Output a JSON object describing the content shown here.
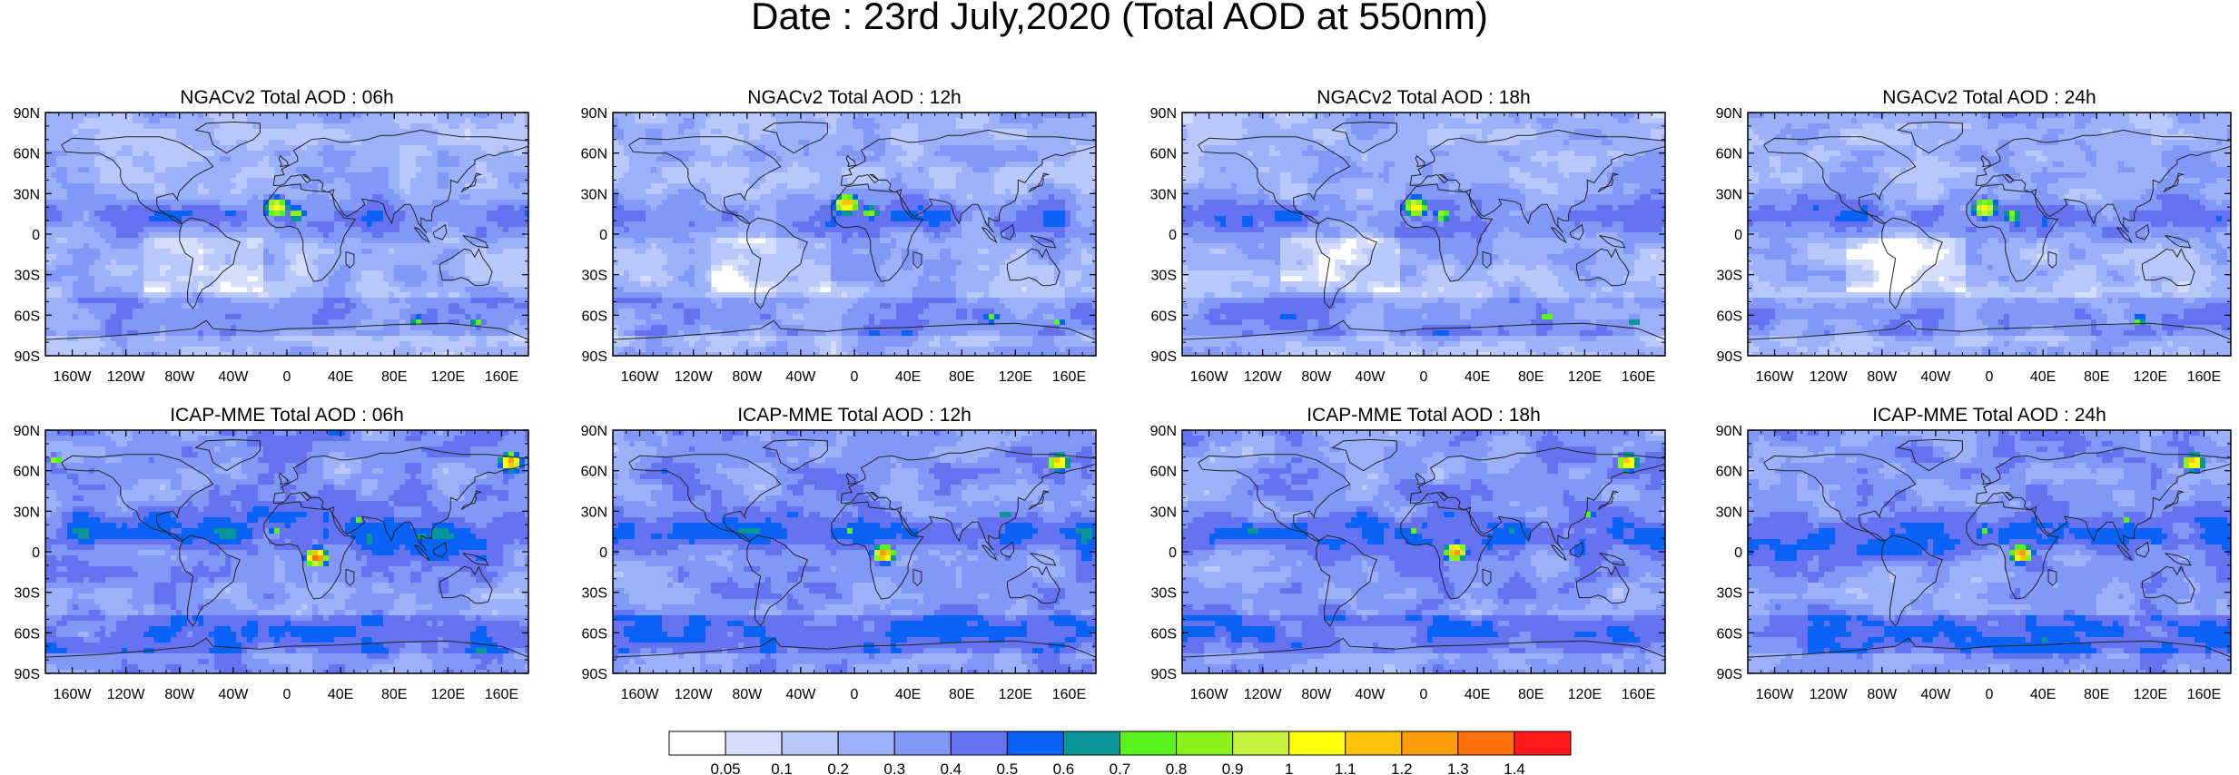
{
  "title": "Date : 23rd July,2020 (Total AOD at 550nm)",
  "lat_labels": [
    "90N",
    "60N",
    "30N",
    "0",
    "30S",
    "60S",
    "90S"
  ],
  "lon_labels": [
    "160W",
    "120W",
    "80W",
    "40W",
    "0",
    "40E",
    "80E",
    "120E",
    "160E"
  ],
  "rows": [
    {
      "panels": [
        {
          "title": "NGACv2 Total AOD : 06h",
          "hotspots": [
            {
              "lon": -10,
              "lat": 22,
              "r": 7,
              "v": 1.1
            },
            {
              "lon": 5,
              "lat": 17,
              "r": 5,
              "v": 0.9
            },
            {
              "lon": 95,
              "lat": -62,
              "r": 4,
              "v": 0.8
            },
            {
              "lon": 140,
              "lat": -63,
              "r": 4,
              "v": 0.8
            }
          ]
        },
        {
          "title": "NGACv2 Total AOD : 12h",
          "hotspots": [
            {
              "lon": -8,
              "lat": 24,
              "r": 7,
              "v": 1.2
            },
            {
              "lon": 10,
              "lat": 18,
              "r": 5,
              "v": 0.9
            },
            {
              "lon": 100,
              "lat": -60,
              "r": 4,
              "v": 0.8
            },
            {
              "lon": 150,
              "lat": -63,
              "r": 3,
              "v": 0.8
            }
          ]
        },
        {
          "title": "NGACv2 Total AOD : 18h",
          "hotspots": [
            {
              "lon": -8,
              "lat": 22,
              "r": 7,
              "v": 1.1
            },
            {
              "lon": 12,
              "lat": 16,
              "r": 5,
              "v": 0.9
            },
            {
              "lon": 90,
              "lat": -60,
              "r": 4,
              "v": 0.8
            },
            {
              "lon": 155,
              "lat": -62,
              "r": 3,
              "v": 0.8
            }
          ]
        },
        {
          "title": "NGACv2 Total AOD : 24h",
          "hotspots": [
            {
              "lon": -5,
              "lat": 21,
              "r": 7,
              "v": 1.1
            },
            {
              "lon": 15,
              "lat": 16,
              "r": 5,
              "v": 0.9
            },
            {
              "lon": 110,
              "lat": -62,
              "r": 4,
              "v": 0.8
            }
          ]
        }
      ]
    },
    {
      "panels": [
        {
          "title": "ICAP-MME Total AOD : 06h",
          "hotspots": [
            {
              "lon": 20,
              "lat": -2,
              "r": 6,
              "v": 1.4
            },
            {
              "lon": -10,
              "lat": 18,
              "r": 4,
              "v": 0.8
            },
            {
              "lon": 50,
              "lat": 25,
              "r": 3,
              "v": 0.8
            },
            {
              "lon": 165,
              "lat": 68,
              "r": 6,
              "v": 1.3
            },
            {
              "lon": -175,
              "lat": 70,
              "r": 4,
              "v": 0.9
            }
          ]
        },
        {
          "title": "ICAP-MME Total AOD : 12h",
          "hotspots": [
            {
              "lon": 20,
              "lat": 0,
              "r": 6,
              "v": 1.3
            },
            {
              "lon": -5,
              "lat": 18,
              "r": 4,
              "v": 0.8
            },
            {
              "lon": 110,
              "lat": 30,
              "r": 3,
              "v": 0.8
            },
            {
              "lon": 150,
              "lat": 68,
              "r": 6,
              "v": 1.2
            }
          ]
        },
        {
          "title": "ICAP-MME Total AOD : 18h",
          "hotspots": [
            {
              "lon": 22,
              "lat": 2,
              "r": 6,
              "v": 1.3
            },
            {
              "lon": -10,
              "lat": 18,
              "r": 4,
              "v": 0.8
            },
            {
              "lon": 120,
              "lat": 30,
              "r": 3,
              "v": 0.8
            },
            {
              "lon": 150,
              "lat": 68,
              "r": 6,
              "v": 1.2
            }
          ]
        },
        {
          "title": "ICAP-MME Total AOD : 24h",
          "hotspots": [
            {
              "lon": 22,
              "lat": 0,
              "r": 6,
              "v": 1.3
            },
            {
              "lon": -5,
              "lat": 18,
              "r": 4,
              "v": 0.8
            },
            {
              "lon": 100,
              "lat": 25,
              "r": 3,
              "v": 0.8
            },
            {
              "lon": 150,
              "lat": 68,
              "r": 6,
              "v": 1.2
            }
          ]
        }
      ]
    }
  ],
  "colorbar": {
    "colors": [
      "#ffffff",
      "#d4defc",
      "#b9c8fb",
      "#9cb1fa",
      "#8298f6",
      "#6673f0",
      "#0b62f6",
      "#0a9598",
      "#59f21c",
      "#8af21a",
      "#c4f23d",
      "#ffff0a",
      "#ffc40a",
      "#ff9c0a",
      "#ff700a",
      "#fe1a1a"
    ],
    "labels": [
      "0.05",
      "0.1",
      "0.2",
      "0.3",
      "0.4",
      "0.5",
      "0.6",
      "0.7",
      "0.8",
      "0.9",
      "1",
      "1.1",
      "1.2",
      "1.3",
      "1.4"
    ]
  }
}
